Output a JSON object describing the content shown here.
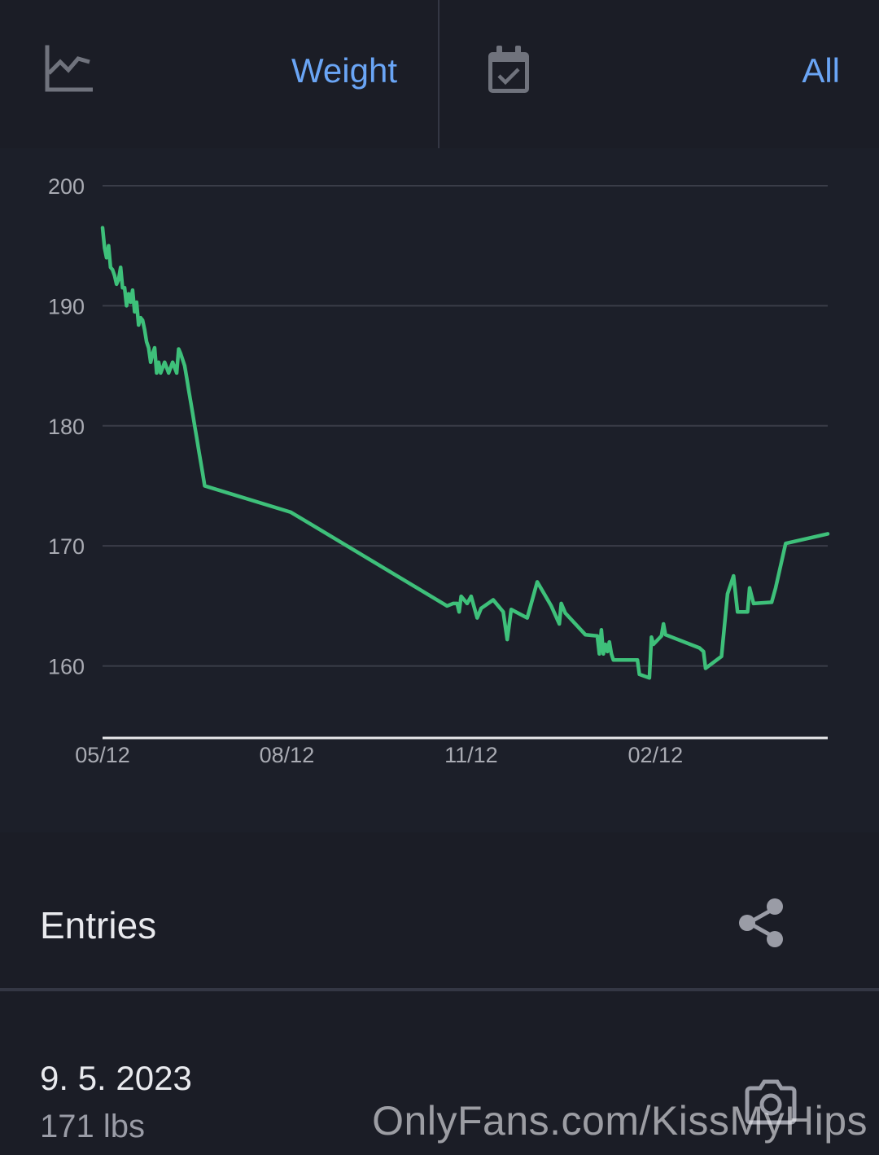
{
  "top_bar": {
    "metric_icon": "line-chart-icon",
    "metric_label": "Weight",
    "range_icon": "calendar-check-icon",
    "range_label": "All"
  },
  "colors": {
    "background": "#1b1d26",
    "accent": "#6aa5f5",
    "line": "#3ec07a",
    "grid": "#3a3d48",
    "axis": "#e8e8ea"
  },
  "chart_data": {
    "type": "line",
    "title": "",
    "xlabel": "",
    "ylabel": "",
    "ylim": [
      154,
      200
    ],
    "yticks": [
      160,
      170,
      180,
      190,
      200
    ],
    "ytick_labels": [
      "160",
      "170",
      "180",
      "190",
      "200"
    ],
    "xtick_labels": [
      "05/12",
      "08/12",
      "11/12",
      "02/12"
    ],
    "x_range": [
      "2022-05-12",
      "2023-05-09"
    ],
    "grid": true,
    "series": [
      {
        "color": "#3ec07a",
        "x": [
          "2022-05-12",
          "2022-05-13",
          "2022-05-14",
          "2022-05-15",
          "2022-05-16",
          "2022-05-17",
          "2022-05-18",
          "2022-05-19",
          "2022-05-20",
          "2022-05-21",
          "2022-05-22",
          "2022-05-23",
          "2022-05-24",
          "2022-05-25",
          "2022-05-26",
          "2022-05-27",
          "2022-05-28",
          "2022-05-29",
          "2022-05-30",
          "2022-05-31",
          "2022-06-01",
          "2022-06-02",
          "2022-06-03",
          "2022-06-04",
          "2022-06-05",
          "2022-06-06",
          "2022-06-07",
          "2022-06-08",
          "2022-06-09",
          "2022-06-10",
          "2022-06-12",
          "2022-06-14",
          "2022-06-16",
          "2022-06-18",
          "2022-06-19",
          "2022-06-20",
          "2022-06-22",
          "2022-06-23",
          "2022-06-24",
          "2022-06-25",
          "2022-06-26",
          "2022-06-27",
          "2022-06-28",
          "2022-06-29",
          "2022-06-30",
          "2022-07-01",
          "2022-07-02",
          "2022-08-14",
          "2022-10-31",
          "2022-11-03",
          "2022-11-05",
          "2022-11-06",
          "2022-11-07",
          "2022-11-10",
          "2022-11-12",
          "2022-11-15",
          "2022-11-17",
          "2022-11-23",
          "2022-11-28",
          "2022-11-30",
          "2022-12-02",
          "2022-12-10",
          "2022-12-15",
          "2022-12-22",
          "2022-12-26",
          "2022-12-27",
          "2022-12-29",
          "2023-01-08",
          "2023-01-14",
          "2023-01-15",
          "2023-01-16",
          "2023-01-17",
          "2023-01-18",
          "2023-01-19",
          "2023-01-20",
          "2023-01-21",
          "2023-01-22",
          "2023-01-23",
          "2023-01-24",
          "2023-02-03",
          "2023-02-04",
          "2023-02-09",
          "2023-02-10",
          "2023-02-11",
          "2023-02-15",
          "2023-02-16",
          "2023-02-17",
          "2023-03-06",
          "2023-03-08",
          "2023-03-09",
          "2023-03-17",
          "2023-03-20",
          "2023-03-23",
          "2023-03-25",
          "2023-03-30",
          "2023-03-31",
          "2023-04-02",
          "2023-04-11",
          "2023-04-13",
          "2023-04-18",
          "2023-05-09"
        ],
        "values": [
          196.5,
          194.8,
          194.0,
          195.0,
          193.2,
          193.0,
          192.5,
          191.8,
          192.2,
          193.2,
          191.5,
          191.5,
          190.0,
          191.0,
          190.3,
          191.3,
          189.5,
          190.3,
          188.4,
          189.0,
          188.8,
          188.0,
          187.0,
          186.5,
          185.3,
          186.0,
          186.5,
          184.4,
          185.3,
          184.4,
          185.3,
          184.4,
          185.3,
          184.4,
          186.4,
          186.0,
          185.0,
          184.0,
          183.0,
          182.0,
          181.0,
          180.0,
          179.0,
          178.0,
          177.0,
          176.0,
          175.0,
          172.8,
          165.0,
          165.2,
          165.2,
          164.5,
          165.8,
          165.2,
          165.8,
          164.0,
          164.8,
          165.5,
          164.5,
          162.2,
          164.7,
          164.0,
          167.0,
          165.0,
          163.5,
          165.2,
          164.4,
          162.6,
          162.5,
          161.0,
          163.0,
          161.0,
          161.8,
          161.2,
          162.0,
          161.0,
          160.5,
          160.5,
          160.5,
          160.5,
          159.3,
          159.0,
          162.4,
          161.8,
          162.5,
          163.5,
          162.6,
          161.5,
          161.2,
          159.8,
          160.8,
          166.0,
          167.5,
          164.5,
          164.5,
          166.5,
          165.2,
          165.3,
          166.5,
          170.2,
          171.0
        ]
      }
    ]
  },
  "entries": {
    "title": "Entries",
    "share_icon": "share-icon",
    "items": [
      {
        "date": "9. 5. 2023",
        "value": "171 lbs",
        "icon": "camera-icon"
      }
    ]
  },
  "watermark": "OnlyFans.com/KissMyHips"
}
